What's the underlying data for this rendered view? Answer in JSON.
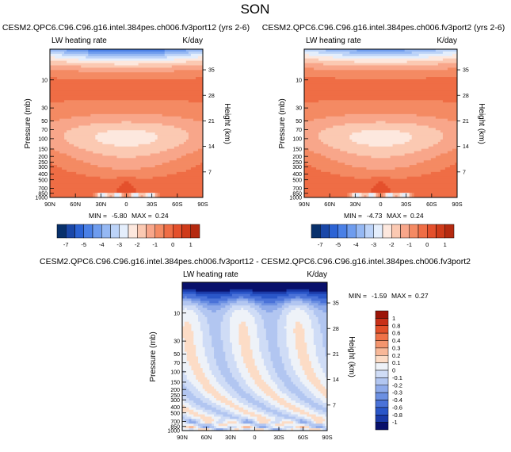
{
  "page_title": "SON",
  "colors": {
    "neg": [
      "#08306b",
      "#1a47a8",
      "#2c63d4",
      "#4a80e6",
      "#6e9cee",
      "#95b8f3",
      "#bcd3f8",
      "#e4eefc"
    ],
    "pos": [
      "#fde8de",
      "#fbc9b2",
      "#f8a68a",
      "#f48a63",
      "#ef6d45",
      "#e4502c",
      "#cf3b1a",
      "#b52a10",
      "#9c1f0a",
      "#7d1505"
    ],
    "diff_neg": [
      "#08106b",
      "#1a3aa8",
      "#2a56c8",
      "#4a72d8",
      "#6c90e2",
      "#8eaaea",
      "#b2c6f1",
      "#cfdcf6"
    ],
    "diff_zero": "#eef2f8",
    "diff_pos": [
      "#fcdcc6",
      "#f8b898",
      "#f4956e",
      "#ef7248",
      "#e2502a",
      "#c83018",
      "#9c1508"
    ]
  },
  "chart_data": [
    {
      "type": "heatmap",
      "title": "CESM2.QPC6.C96.C96.g16.intel.384pes.ch006.fv3port12 (yrs 2-6)",
      "left_label": "LW heating rate",
      "right_label": "K/day",
      "ylabel": "Pressure (mb)",
      "y2label": "Height (km)",
      "x_ticks": [
        "90N",
        "60N",
        "30N",
        "0",
        "30S",
        "60S",
        "90S"
      ],
      "y_ticks": [
        "10",
        "30",
        "50",
        "70",
        "100",
        "150",
        "200",
        "250",
        "300",
        "400",
        "500",
        "700",
        "850",
        "1000"
      ],
      "y2_ticks": [
        "35",
        "28",
        "21",
        "14",
        "7"
      ],
      "ylim": [
        1000,
        3
      ],
      "xlim": [
        90,
        -90
      ],
      "min": -5.8,
      "max": 0.24,
      "stats": {
        "min_label": "MIN =",
        "min": "-5.80",
        "max_label": "MAX =",
        "max": "0.24"
      },
      "colorbar_labels": [
        "-7",
        "-5",
        "-4",
        "-3",
        "-2",
        "-1",
        "0",
        "1"
      ]
    },
    {
      "type": "heatmap",
      "title": "CESM2.QPC6.C96.C96.g16.intel.384pes.ch006.fv3port2 (yrs 2-6)",
      "left_label": "LW heating rate",
      "right_label": "K/day",
      "ylabel": "Pressure (mb)",
      "y2label": "Height (km)",
      "x_ticks": [
        "90N",
        "60N",
        "30N",
        "0",
        "30S",
        "60S",
        "90S"
      ],
      "y_ticks": [
        "10",
        "30",
        "50",
        "70",
        "100",
        "150",
        "200",
        "250",
        "300",
        "400",
        "500",
        "700",
        "850",
        "1000"
      ],
      "y2_ticks": [
        "35",
        "28",
        "21",
        "14",
        "7"
      ],
      "ylim": [
        1000,
        3
      ],
      "xlim": [
        90,
        -90
      ],
      "min": -4.73,
      "max": 0.24,
      "stats": {
        "min_label": "MIN =",
        "min": "-4.73",
        "max_label": "MAX =",
        "max": "0.24"
      },
      "colorbar_labels": [
        "-7",
        "-5",
        "-4",
        "-3",
        "-2",
        "-1",
        "0",
        "1"
      ]
    },
    {
      "type": "heatmap",
      "title": "CESM2.QPC6.C96.C96.g16.intel.384pes.ch006.fv3port12 - CESM2.QPC6.C96.C96.g16.intel.384pes.ch006.fv3port2",
      "left_label": "LW heating rate",
      "right_label": "K/day",
      "ylabel": "Pressure (mb)",
      "y2label": "Height (km)",
      "x_ticks": [
        "90N",
        "60N",
        "30N",
        "0",
        "30S",
        "60S",
        "90S"
      ],
      "y_ticks": [
        "10",
        "30",
        "50",
        "70",
        "100",
        "150",
        "200",
        "250",
        "300",
        "400",
        "500",
        "700",
        "850",
        "1000"
      ],
      "y2_ticks": [
        "35",
        "28",
        "21",
        "14",
        "7"
      ],
      "ylim": [
        1000,
        3
      ],
      "xlim": [
        90,
        -90
      ],
      "min": -1.59,
      "max": 0.27,
      "stats": {
        "min_label": "MIN =",
        "min": "-1.59",
        "max_label": "MAX =",
        "max": "0.27"
      },
      "colorbar_labels": [
        "1",
        "0.8",
        "0.6",
        "0.4",
        "0.3",
        "0.2",
        "0.1",
        "0",
        "-0.1",
        "-0.2",
        "-0.3",
        "-0.4",
        "-0.6",
        "-0.8",
        "-1"
      ]
    }
  ]
}
